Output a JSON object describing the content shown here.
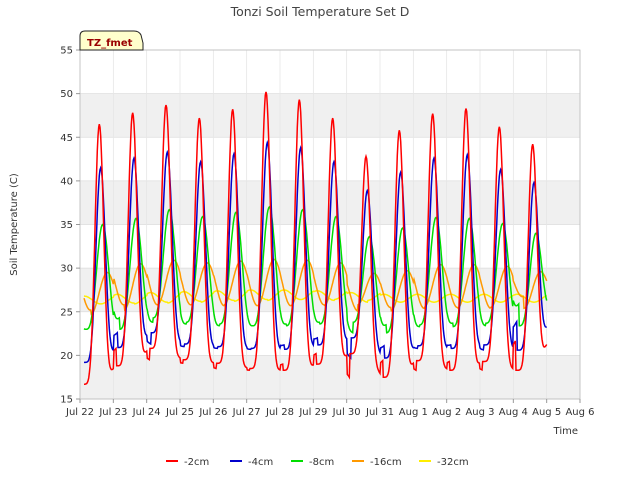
{
  "chart_data": {
    "type": "line",
    "title": "Tonzi Soil Temperature Set D",
    "xlabel": "Time",
    "ylabel": "Soil Temperature (C)",
    "xlim": [
      22.0,
      37.0
    ],
    "ylim": [
      15,
      55
    ],
    "y_ticks": [
      15,
      20,
      25,
      30,
      35,
      40,
      45,
      50,
      55
    ],
    "x_ticks": [
      {
        "value": 22,
        "label": "Jul 22"
      },
      {
        "value": 23,
        "label": "Jul 23"
      },
      {
        "value": 24,
        "label": "Jul 24"
      },
      {
        "value": 25,
        "label": "Jul 25"
      },
      {
        "value": 26,
        "label": "Jul 26"
      },
      {
        "value": 27,
        "label": "Jul 27"
      },
      {
        "value": 28,
        "label": "Jul 28"
      },
      {
        "value": 29,
        "label": "Jul 29"
      },
      {
        "value": 30,
        "label": "Jul 30"
      },
      {
        "value": 31,
        "label": "Jul 31"
      },
      {
        "value": 32,
        "label": "Aug 1"
      },
      {
        "value": 33,
        "label": "Aug 2"
      },
      {
        "value": 34,
        "label": "Aug 3"
      },
      {
        "value": 35,
        "label": "Aug 4"
      },
      {
        "value": 36,
        "label": "Aug 5"
      },
      {
        "value": 37,
        "label": "Aug 6"
      }
    ],
    "site_label": "TZ_fmet",
    "grid": true,
    "background_bands": true,
    "legend_position": "bottom",
    "series": [
      {
        "name": "-2cm",
        "color": "#ff0000",
        "daily_min": [
          16.7,
          18.8,
          20.8,
          19.5,
          19.1,
          18.5,
          18.3,
          19.0,
          20.2,
          17.5,
          19.4,
          18.3,
          19.3,
          18.3,
          21.8
        ],
        "daily_max": [
          46.5,
          47.8,
          48.7,
          47.2,
          48.2,
          50.2,
          49.3,
          47.2,
          42.8,
          45.8,
          47.7,
          48.3,
          46.2,
          44.2
        ]
      },
      {
        "name": "-4cm",
        "color": "#0000cc",
        "daily_min": [
          19.2,
          20.9,
          22.6,
          21.3,
          21.0,
          20.8,
          20.7,
          21.2,
          22.0,
          19.7,
          21.1,
          20.8,
          21.2,
          20.6,
          24.0
        ],
        "daily_max": [
          41.5,
          42.6,
          43.3,
          42.2,
          43.1,
          44.4,
          43.8,
          42.2,
          38.9,
          41.0,
          42.6,
          43.0,
          41.3,
          39.8
        ]
      },
      {
        "name": "-8cm",
        "color": "#00dd00",
        "daily_min": [
          23.0,
          23.0,
          24.3,
          23.8,
          23.6,
          23.4,
          23.4,
          23.6,
          23.8,
          22.6,
          23.5,
          23.3,
          23.7,
          23.4,
          26.0
        ],
        "daily_max": [
          35.0,
          35.7,
          36.7,
          35.9,
          36.4,
          37.0,
          36.7,
          35.9,
          33.6,
          34.6,
          35.8,
          35.7,
          35.1,
          34.0
        ]
      },
      {
        "name": "-16cm",
        "color": "#ff9900",
        "daily_min": [
          24.7,
          25.2,
          25.8,
          25.8,
          25.8,
          25.7,
          25.7,
          25.7,
          25.8,
          25.1,
          25.5,
          25.4,
          25.5,
          25.4,
          26.8
        ],
        "daily_max": [
          29.5,
          30.5,
          30.9,
          30.6,
          30.8,
          31.0,
          30.9,
          30.6,
          29.4,
          29.7,
          30.4,
          30.4,
          30.2,
          29.6
        ]
      },
      {
        "name": "-32cm",
        "color": "#ffee00",
        "daily_min": [
          25.9,
          25.9,
          26.0,
          26.1,
          26.2,
          26.3,
          26.4,
          26.4,
          26.3,
          26.1,
          26.1,
          26.1,
          26.1,
          26.1
        ],
        "daily_max": [
          26.8,
          27.0,
          27.2,
          27.3,
          27.4,
          27.5,
          27.5,
          27.4,
          27.2,
          27.0,
          27.0,
          27.0,
          27.0,
          27.0
        ]
      }
    ]
  }
}
